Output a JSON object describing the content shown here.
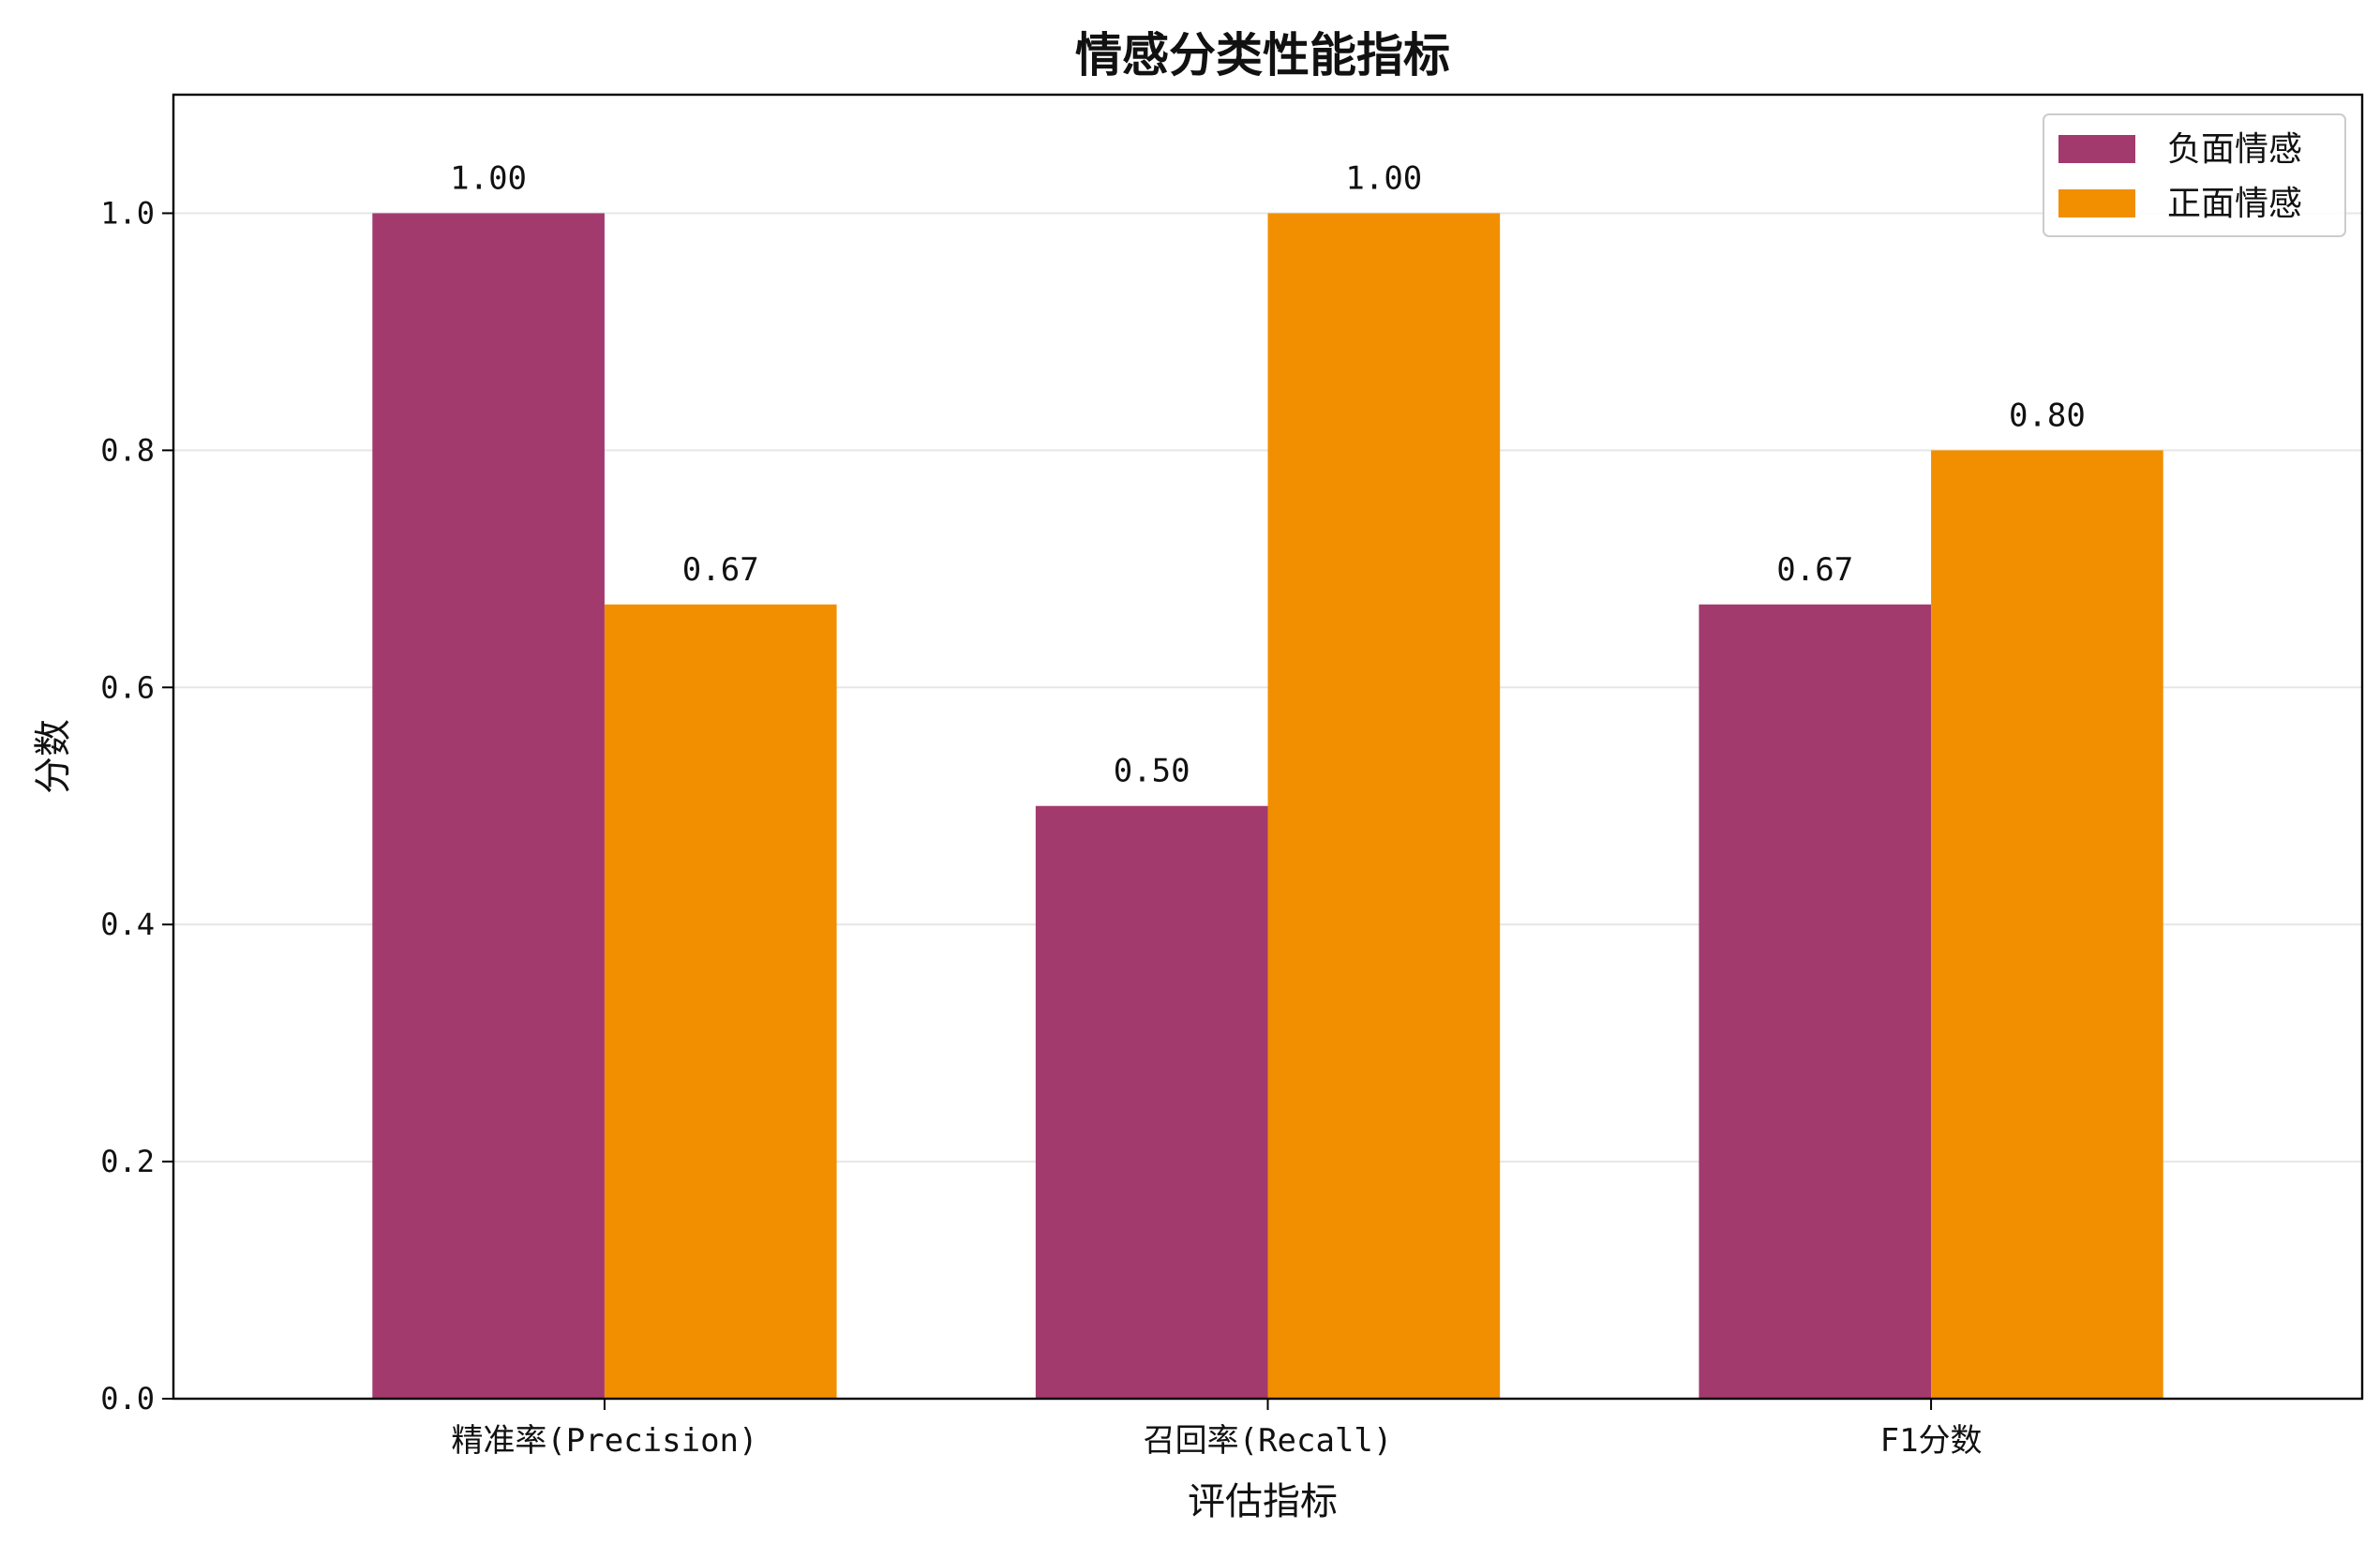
{
  "chart_data": {
    "type": "bar",
    "title": "情感分类性能指标",
    "xlabel": "评估指标",
    "ylabel": "分数",
    "categories": [
      "精准率(Precision)",
      "召回率(Recall)",
      "F1分数"
    ],
    "series": [
      {
        "name": "负面情感",
        "color": "#A23A6E",
        "values": [
          1.0,
          0.5,
          0.67
        ],
        "labels": [
          "1.00",
          "0.50",
          "0.67"
        ]
      },
      {
        "name": "正面情感",
        "color": "#F18F01",
        "values": [
          0.67,
          1.0,
          0.8
        ],
        "labels": [
          "0.67",
          "1.00",
          "0.80"
        ]
      }
    ],
    "ylim": [
      0,
      1.1
    ],
    "yticks": [
      0.0,
      0.2,
      0.4,
      0.6,
      0.8,
      1.0
    ],
    "ytick_labels": [
      "0.0",
      "0.2",
      "0.4",
      "0.6",
      "0.8",
      "1.0"
    ],
    "grid": "y",
    "legend_position": "top-right"
  }
}
